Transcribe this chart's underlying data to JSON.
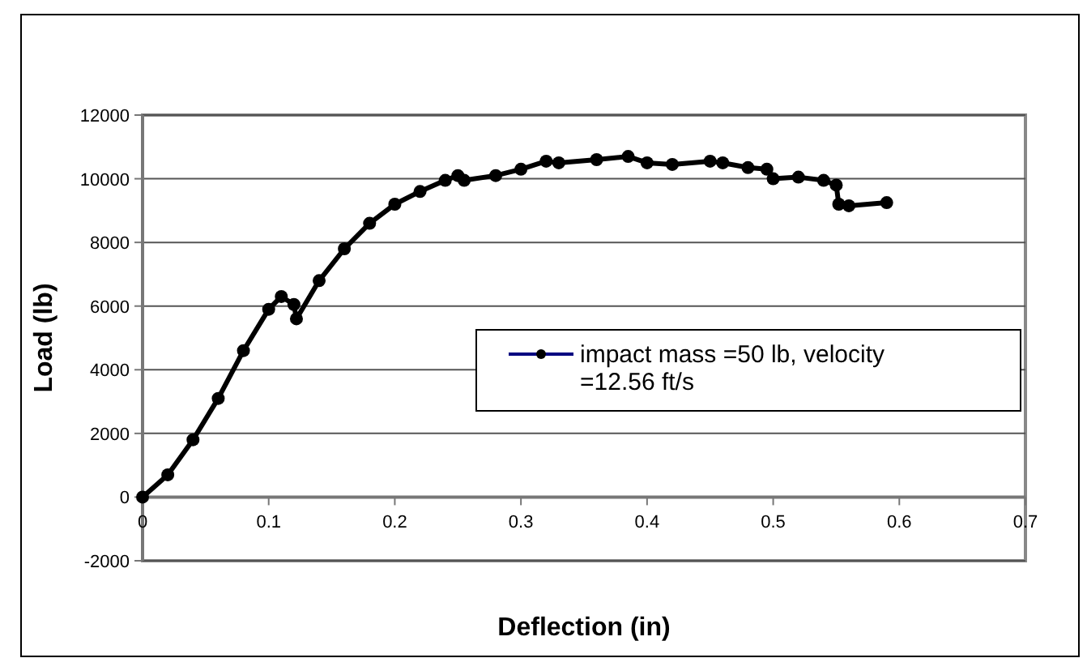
{
  "chart_data": {
    "type": "line",
    "xlabel": "Deflection (in)",
    "ylabel": "Load (lb)",
    "xlim": [
      0,
      0.7
    ],
    "xticks": [
      0,
      0.1,
      0.2,
      0.3,
      0.4,
      0.5,
      0.6,
      0.7
    ],
    "ylim": [
      -2000,
      12000
    ],
    "yticks": [
      -2000,
      0,
      2000,
      4000,
      6000,
      8000,
      10000,
      12000
    ],
    "grid": "y",
    "legend": "right",
    "marker": "circle",
    "line_style": "solid",
    "series": [
      {
        "name": "impact mass =50 lb, velocity =12.56 ft/s",
        "color": "#000000",
        "x": [
          0,
          0.02,
          0.04,
          0.06,
          0.08,
          0.1,
          0.11,
          0.12,
          0.122,
          0.14,
          0.16,
          0.18,
          0.2,
          0.22,
          0.24,
          0.25,
          0.255,
          0.28,
          0.3,
          0.32,
          0.33,
          0.36,
          0.385,
          0.4,
          0.42,
          0.45,
          0.46,
          0.48,
          0.495,
          0.5,
          0.52,
          0.54,
          0.55,
          0.552,
          0.56,
          0.59
        ],
        "values": [
          0,
          700,
          1800,
          3100,
          4600,
          5900,
          6300,
          6050,
          5600,
          6800,
          7800,
          8600,
          9200,
          9600,
          9950,
          10100,
          9950,
          10100,
          10300,
          10550,
          10500,
          10600,
          10700,
          10500,
          10450,
          10550,
          10500,
          10350,
          10300,
          10000,
          10050,
          9950,
          9800,
          9200,
          9150,
          9250
        ]
      }
    ]
  }
}
